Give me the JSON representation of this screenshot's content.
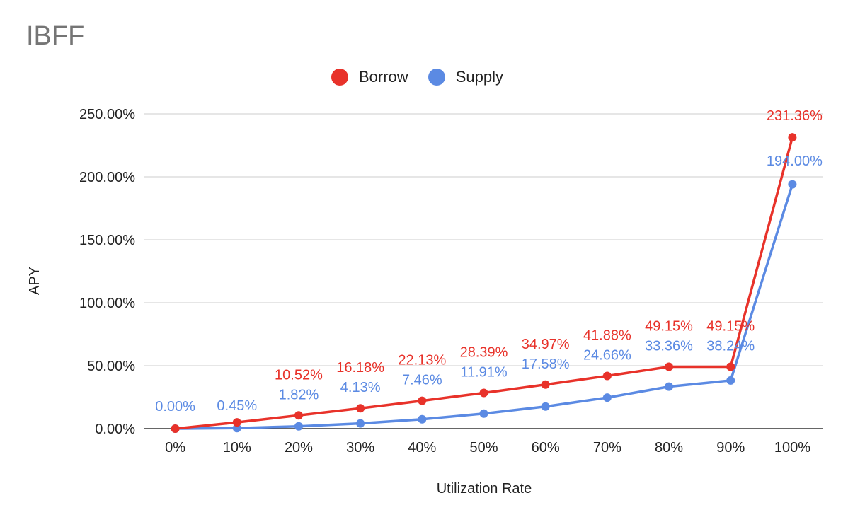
{
  "chart_data": {
    "type": "line",
    "title": "IBFF",
    "xlabel": "Utilization Rate",
    "ylabel": "APY",
    "categories": [
      "0%",
      "10%",
      "20%",
      "30%",
      "40%",
      "50%",
      "60%",
      "70%",
      "80%",
      "90%",
      "100%"
    ],
    "y_ticks": [
      "0.00%",
      "50.00%",
      "100.00%",
      "150.00%",
      "200.00%",
      "250.00%"
    ],
    "ylim": [
      0,
      250
    ],
    "grid": true,
    "legend_position": "top",
    "series": [
      {
        "name": "Borrow",
        "color": "#e8322a",
        "values": [
          0,
          5,
          10.52,
          16.18,
          22.13,
          28.39,
          34.97,
          41.88,
          49.15,
          49.15,
          231.36
        ],
        "labels": [
          "",
          "",
          "10.52%",
          "16.18%",
          "22.13%",
          "28.39%",
          "34.97%",
          "41.88%",
          "49.15%",
          "49.15%",
          "231.36%"
        ]
      },
      {
        "name": "Supply",
        "color": "#5b8ae3",
        "values": [
          0,
          0.45,
          1.82,
          4.13,
          7.46,
          11.91,
          17.58,
          24.66,
          33.36,
          38.24,
          194.0
        ],
        "labels": [
          "0.00%",
          "0.45%",
          "1.82%",
          "4.13%",
          "7.46%",
          "11.91%",
          "17.58%",
          "24.66%",
          "33.36%",
          "38.24%",
          "194.00%"
        ]
      }
    ]
  }
}
